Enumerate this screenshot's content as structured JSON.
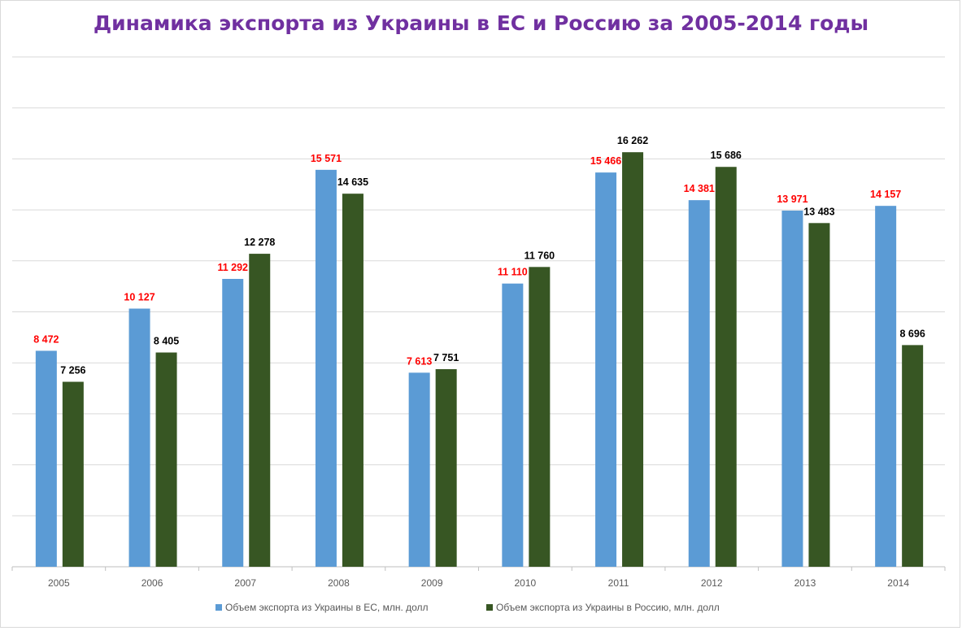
{
  "chart_data": {
    "type": "bar",
    "title": "Динамика экспорта из Украины в ЕС и Россию  за  2005-2014 годы",
    "xlabel": "",
    "ylabel": "",
    "ylim": [
      0,
      18000
    ],
    "grid": true,
    "grid_step": 2000,
    "legend_position": "bottom",
    "categories": [
      "2005",
      "2006",
      "2007",
      "2008",
      "2009",
      "2010",
      "2011",
      "2012",
      "2013",
      "2014"
    ],
    "series": [
      {
        "name": "Объем экспорта  из Украины в ЕС, млн. долл",
        "color": "#5b9bd5",
        "label_color": "#ff0000",
        "values": [
          8472,
          10127,
          11292,
          15571,
          7613,
          11110,
          15466,
          14381,
          13971,
          14157
        ],
        "labels": [
          "8 472",
          "10 127",
          "11 292",
          "15 571",
          "7 613",
          "11 110",
          "15 466",
          "14 381",
          "13 971",
          "14 157"
        ]
      },
      {
        "name": "Объем экспорта  из Украины в Россию, млн. долл",
        "color": "#375623",
        "label_color": "#000000",
        "values": [
          7256,
          8405,
          12278,
          14635,
          7751,
          11760,
          16262,
          15686,
          13483,
          8696
        ],
        "labels": [
          "7 256",
          "8 405",
          "12 278",
          "14 635",
          "7 751",
          "11 760",
          "16 262",
          "15 686",
          "13 483",
          "8 696"
        ]
      }
    ]
  }
}
